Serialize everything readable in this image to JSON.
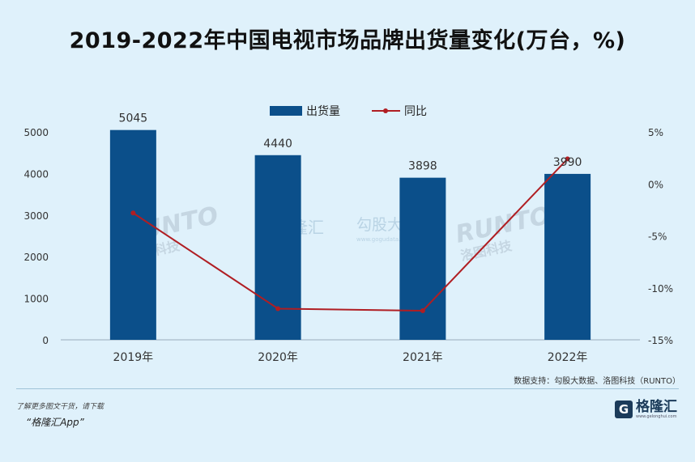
{
  "page": {
    "title": "2019-2022年中国电视市场品牌出货量变化(万台，%)",
    "source": "数据支持：勾股大数据、洛图科技（RUNTO）",
    "footer_note": "了解更多图文干货，请下载",
    "footer_app": "“格隆汇App”",
    "brand_mark": "G",
    "brand_name": "格隆汇",
    "brand_url": "www.gelonghui.com",
    "watermark_runto": "RUNTO",
    "watermark_runto_cn": "洛图科技",
    "watermark_glh": "格隆汇",
    "watermark_ggu": "勾股大数据",
    "watermark_ggu_url": "www.gogudata.com"
  },
  "colors": {
    "bar": "#0b4f8a",
    "line": "#b01e23",
    "background": "#dff1fb"
  },
  "chart_data": {
    "type": "bar",
    "categories": [
      "2019年",
      "2020年",
      "2021年",
      "2022年"
    ],
    "series": [
      {
        "name": "出货量",
        "type": "bar",
        "axis": "left",
        "values": [
          5045,
          4440,
          3898,
          3990
        ]
      },
      {
        "name": "同比",
        "type": "line",
        "axis": "right",
        "values": [
          -2.8,
          -12.0,
          -12.2,
          2.4
        ]
      }
    ],
    "data_labels": [
      "5045",
      "4440",
      "3898",
      "3990"
    ],
    "y_left": {
      "min": 0,
      "max": 5000,
      "ticks": [
        "0",
        "1000",
        "2000",
        "3000",
        "4000",
        "5000"
      ]
    },
    "y_right": {
      "min": -15,
      "max": 5,
      "ticks": [
        "-15%",
        "-10%",
        "-5%",
        "0%",
        "5%"
      ]
    },
    "legend": "top-center",
    "grid": false
  }
}
